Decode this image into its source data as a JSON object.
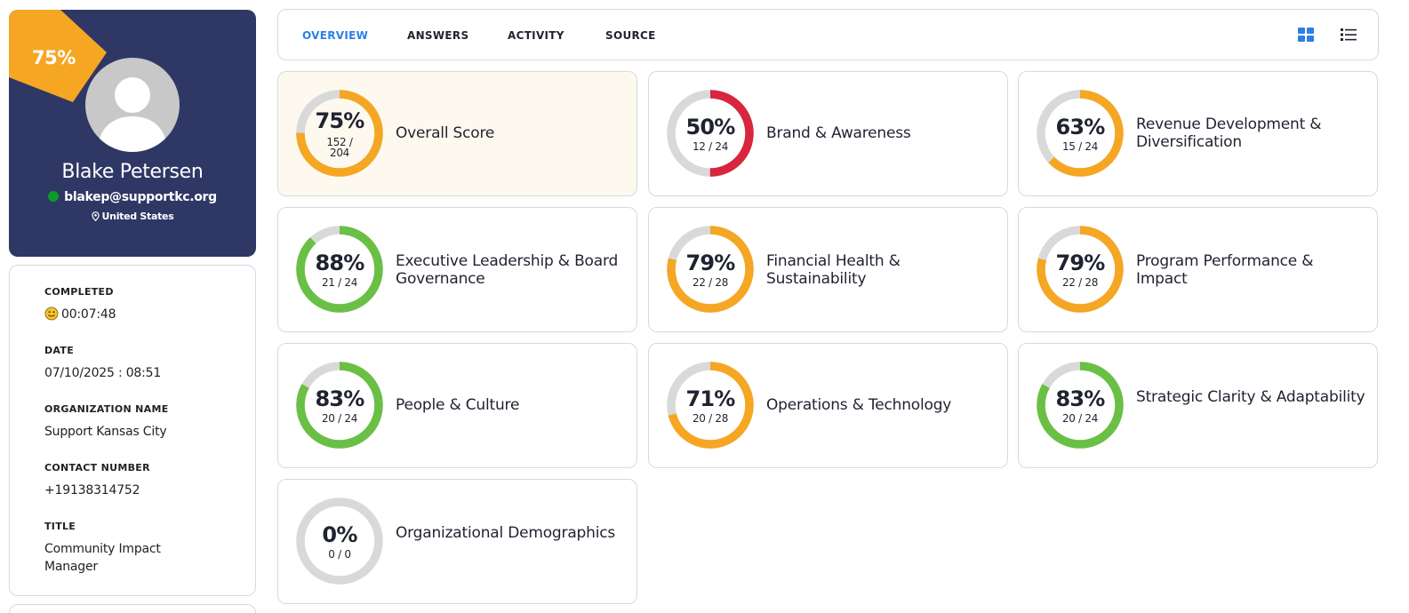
{
  "profile": {
    "score_badge": "75%",
    "name": "Blake Petersen",
    "email": "blakep@supportkc.org",
    "location": "United States",
    "colors": {
      "card_bg": "#2f3765",
      "badge": "#f5a623",
      "online": "#0c9a2a"
    }
  },
  "details": [
    {
      "label": "COMPLETED",
      "value": "00:07:48",
      "icon": "smiley-icon"
    },
    {
      "label": "DATE",
      "value": "07/10/2025 : 08:51"
    },
    {
      "label": "ORGANIZATION NAME",
      "value": "Support Kansas City"
    },
    {
      "label": "CONTACT NUMBER",
      "value": "+19138314752"
    },
    {
      "label": "TITLE",
      "value": "Community Impact Manager"
    }
  ],
  "tabs": [
    {
      "label": "OVERVIEW",
      "active": true
    },
    {
      "label": "ANSWERS",
      "active": false
    },
    {
      "label": "ACTIVITY",
      "active": false
    },
    {
      "label": "SOURCE",
      "active": false
    }
  ],
  "view_toggle": {
    "grid_icon": "grid-view-icon",
    "list_icon": "list-view-icon",
    "active": "grid"
  },
  "colors": {
    "orange": "#f5a623",
    "green": "#6abf45",
    "red": "#d7263d",
    "track": "#d9d9d9",
    "accent": "#2e7ee6"
  },
  "scores": [
    {
      "title": "Overall Score",
      "percent": "75%",
      "ratio": "152 / 204",
      "fraction": 0.75,
      "color": "orange",
      "highlight": true
    },
    {
      "title": "Brand & Awareness",
      "percent": "50%",
      "ratio": "12 / 24",
      "fraction": 0.5,
      "color": "red"
    },
    {
      "title": "Revenue Development & Diversification",
      "percent": "63%",
      "ratio": "15 / 24",
      "fraction": 0.63,
      "color": "orange"
    },
    {
      "title": "Executive Leadership & Board Governance",
      "percent": "88%",
      "ratio": "21 / 24",
      "fraction": 0.88,
      "color": "green"
    },
    {
      "title": "Financial Health & Sustainability",
      "percent": "79%",
      "ratio": "22 / 28",
      "fraction": 0.79,
      "color": "orange"
    },
    {
      "title": "Program Performance & Impact",
      "percent": "79%",
      "ratio": "22 / 28",
      "fraction": 0.79,
      "color": "orange"
    },
    {
      "title": "People & Culture",
      "percent": "83%",
      "ratio": "20 / 24",
      "fraction": 0.83,
      "color": "green"
    },
    {
      "title": "Operations & Technology",
      "percent": "71%",
      "ratio": "20 / 28",
      "fraction": 0.71,
      "color": "orange"
    },
    {
      "title": "Strategic Clarity & Adaptability",
      "percent": "83%",
      "ratio": "20 / 24",
      "fraction": 0.83,
      "color": "green"
    },
    {
      "title": "Organizational Demographics",
      "percent": "0%",
      "ratio": "0 / 0",
      "fraction": 0,
      "color": "orange"
    }
  ]
}
